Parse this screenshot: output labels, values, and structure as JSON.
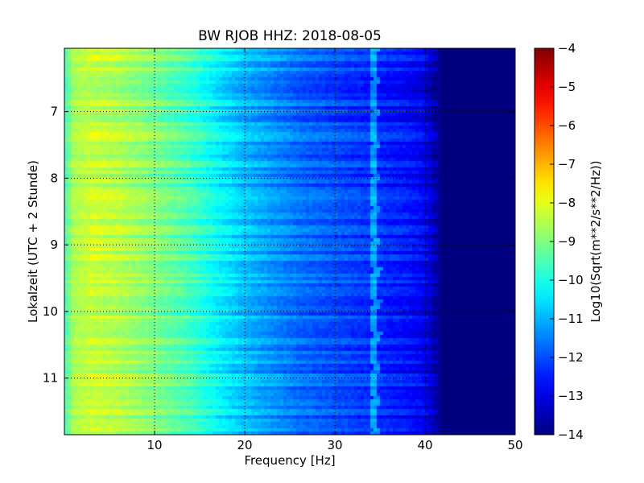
{
  "chart_data": {
    "type": "heatmap",
    "title": "BW RJOB HHZ: 2018-08-05",
    "xlabel": "Frequency [Hz]",
    "ylabel": "Lokalzeit (UTC + 2 Stunde)",
    "xlim": [
      0,
      50
    ],
    "ylim": [
      6.05,
      11.85
    ],
    "y_inverted": true,
    "x_ticks": [
      10,
      20,
      30,
      40,
      50
    ],
    "y_ticks": [
      7,
      8,
      9,
      10,
      11
    ],
    "grid": true,
    "colorbar": {
      "label": "Log10(Sqrt(m**2/s**2/Hz))",
      "range": [
        -14,
        -4
      ],
      "ticks": [
        -4,
        -5,
        -6,
        -7,
        -8,
        -9,
        -10,
        -11,
        -12,
        -13,
        -14
      ],
      "colormap": "jet"
    },
    "spectrum_profile": {
      "frequency_hz": [
        0,
        1,
        3,
        6,
        10,
        14,
        17,
        20,
        23,
        26,
        30,
        34,
        38,
        40,
        41,
        42,
        50
      ],
      "log10_amplitude": [
        -9.7,
        -8.6,
        -8.3,
        -8.5,
        -9.0,
        -9.6,
        -10.3,
        -10.9,
        -11.3,
        -11.7,
        -12.0,
        -12.3,
        -12.6,
        -12.9,
        -13.5,
        -14.0,
        -14.0
      ]
    },
    "drifting_line_hz": 34.2
  }
}
